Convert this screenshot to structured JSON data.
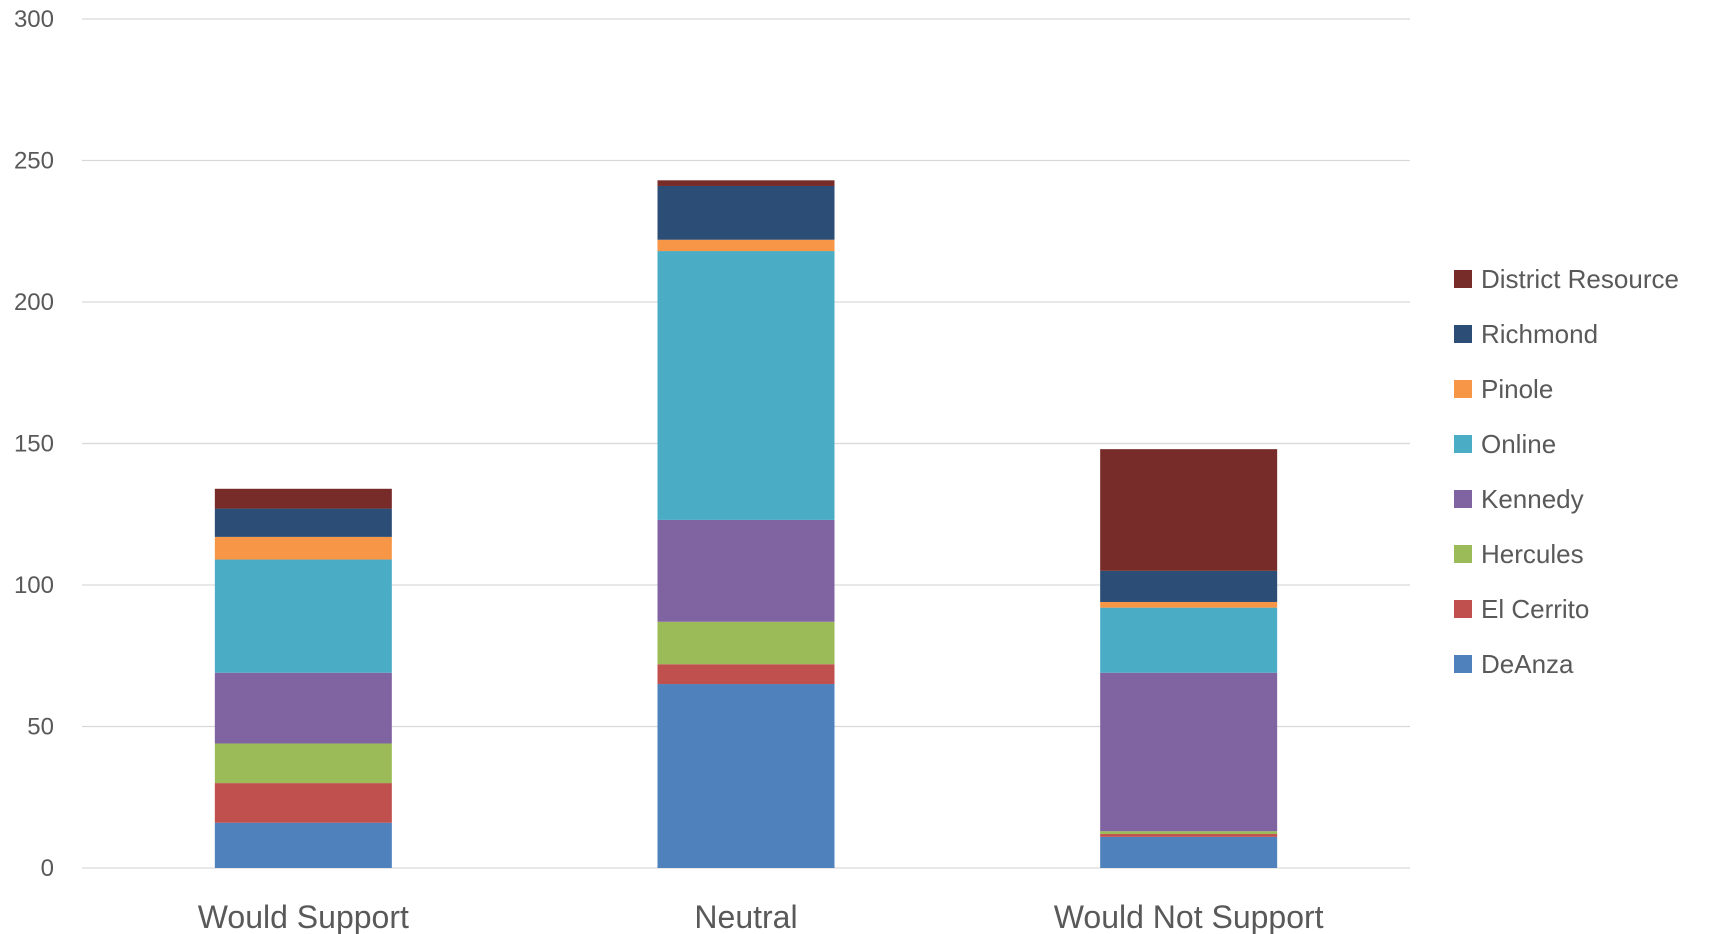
{
  "chart_data": {
    "type": "bar",
    "stacked": true,
    "title": "",
    "xlabel": "",
    "ylabel": "",
    "ylim": [
      0,
      300
    ],
    "y_ticks": [
      0,
      50,
      100,
      150,
      200,
      250,
      300
    ],
    "grid": true,
    "legend_position": "right",
    "categories": [
      "Would Support",
      "Neutral",
      "Would Not Support"
    ],
    "series": [
      {
        "name": "DeAnza",
        "color": "#4f81bd",
        "values": [
          16,
          65,
          11
        ]
      },
      {
        "name": "El Cerrito",
        "color": "#c0504d",
        "values": [
          14,
          7,
          1
        ]
      },
      {
        "name": "Hercules",
        "color": "#9bbb59",
        "values": [
          14,
          15,
          1
        ]
      },
      {
        "name": "Kennedy",
        "color": "#8064a2",
        "values": [
          25,
          36,
          56
        ]
      },
      {
        "name": "Online",
        "color": "#4bacc6",
        "values": [
          40,
          95,
          23
        ]
      },
      {
        "name": "Pinole",
        "color": "#f79646",
        "values": [
          8,
          4,
          2
        ]
      },
      {
        "name": "Richmond",
        "color": "#2c4d75",
        "values": [
          10,
          19,
          11
        ]
      },
      {
        "name": "District Resource",
        "color": "#772c2a",
        "values": [
          7,
          2,
          43
        ]
      }
    ]
  }
}
